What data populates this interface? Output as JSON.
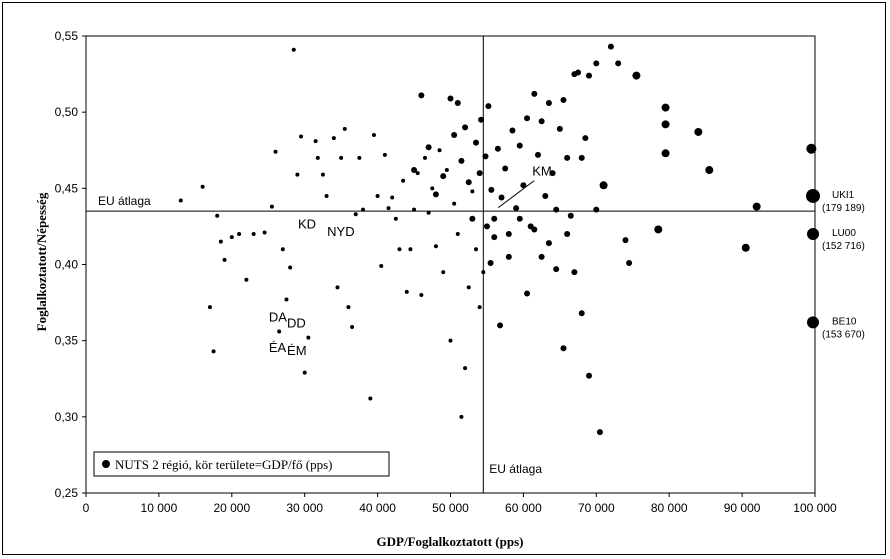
{
  "chart_data": {
    "type": "scatter",
    "xlabel": "GDP/Foglalkoztatott (pps)",
    "ylabel": "Foglalkoztatott/Népesség",
    "xlim": [
      0,
      100000
    ],
    "ylim": [
      0.25,
      0.55
    ],
    "x_ticks": [
      0,
      10000,
      20000,
      30000,
      40000,
      50000,
      60000,
      70000,
      80000,
      90000,
      100000
    ],
    "x_tick_labels": [
      "0",
      "10 000",
      "20 000",
      "30 000",
      "40 000",
      "50 000",
      "60 000",
      "70 000",
      "80 000",
      "90 000",
      "100 000"
    ],
    "y_ticks": [
      0.25,
      0.3,
      0.35,
      0.4,
      0.45,
      0.5,
      0.55
    ],
    "y_tick_labels": [
      "0,25",
      "0,30",
      "0,35",
      "0,40",
      "0,45",
      "0,50",
      "0,55"
    ],
    "grid": false,
    "legend": {
      "position": "bottom-left",
      "label": "NUTS 2 régió, kör területe=GDP/fő (pps)"
    },
    "reference_lines": {
      "eu_avg_x": 54500,
      "eu_avg_y": 0.435,
      "label_horizontal": "EU átlaga",
      "label_vertical": "EU átlaga"
    },
    "annotations": [
      {
        "text": "KD",
        "x": 31000,
        "y": 0.427
      },
      {
        "text": "NYD",
        "x": 35000,
        "y": 0.422
      },
      {
        "text": "DA",
        "x": 27000,
        "y": 0.366
      },
      {
        "text": "DD",
        "x": 29500,
        "y": 0.362
      },
      {
        "text": "ÉA",
        "x": 27000,
        "y": 0.346
      },
      {
        "text": "ÉM",
        "x": 29500,
        "y": 0.344
      },
      {
        "text": "KM",
        "x": 56000,
        "y": 0.436,
        "label": "KM"
      }
    ],
    "side_labels": [
      {
        "name": "UKI1",
        "value": "(179 189)",
        "y": 0.445
      },
      {
        "name": "LU00",
        "value": "(152 716)",
        "y": 0.42
      },
      {
        "name": "BE10",
        "value": "(153 670)",
        "y": 0.362
      }
    ],
    "points": [
      [
        13000,
        0.442,
        2
      ],
      [
        16000,
        0.451,
        2
      ],
      [
        17000,
        0.372,
        2
      ],
      [
        17500,
        0.343,
        2
      ],
      [
        18000,
        0.432,
        2
      ],
      [
        18500,
        0.415,
        2
      ],
      [
        19000,
        0.403,
        2
      ],
      [
        20000,
        0.418,
        2
      ],
      [
        21000,
        0.42,
        2
      ],
      [
        22000,
        0.39,
        2
      ],
      [
        23000,
        0.42,
        2
      ],
      [
        24500,
        0.421,
        2
      ],
      [
        25500,
        0.438,
        2
      ],
      [
        26000,
        0.474,
        2
      ],
      [
        26500,
        0.356,
        2
      ],
      [
        27000,
        0.41,
        2
      ],
      [
        27500,
        0.377,
        2
      ],
      [
        28000,
        0.398,
        2
      ],
      [
        28500,
        0.541,
        2
      ],
      [
        29000,
        0.459,
        2
      ],
      [
        29500,
        0.484,
        2
      ],
      [
        30000,
        0.329,
        2
      ],
      [
        30500,
        0.352,
        2
      ],
      [
        31500,
        0.481,
        2
      ],
      [
        31800,
        0.47,
        2
      ],
      [
        32500,
        0.459,
        2
      ],
      [
        33000,
        0.445,
        2
      ],
      [
        34000,
        0.483,
        2
      ],
      [
        34500,
        0.385,
        2
      ],
      [
        35000,
        0.47,
        2
      ],
      [
        35500,
        0.489,
        2
      ],
      [
        36000,
        0.372,
        2
      ],
      [
        36500,
        0.359,
        2
      ],
      [
        37000,
        0.433,
        2
      ],
      [
        37500,
        0.47,
        2
      ],
      [
        38000,
        0.436,
        2
      ],
      [
        39000,
        0.312,
        2
      ],
      [
        39500,
        0.485,
        2
      ],
      [
        40000,
        0.445,
        2
      ],
      [
        40500,
        0.399,
        2
      ],
      [
        41000,
        0.472,
        2
      ],
      [
        41500,
        0.437,
        2
      ],
      [
        42000,
        0.444,
        2
      ],
      [
        42500,
        0.43,
        2
      ],
      [
        43000,
        0.41,
        2
      ],
      [
        43500,
        0.455,
        2
      ],
      [
        44000,
        0.382,
        2
      ],
      [
        44500,
        0.41,
        2
      ],
      [
        45000,
        0.436,
        2
      ],
      [
        45500,
        0.46,
        2
      ],
      [
        46000,
        0.38,
        2
      ],
      [
        46500,
        0.47,
        2
      ],
      [
        47000,
        0.434,
        2
      ],
      [
        47500,
        0.45,
        2
      ],
      [
        48000,
        0.412,
        2
      ],
      [
        48500,
        0.475,
        2
      ],
      [
        49000,
        0.395,
        2
      ],
      [
        49500,
        0.462,
        2
      ],
      [
        50000,
        0.35,
        2
      ],
      [
        50500,
        0.44,
        2
      ],
      [
        51000,
        0.42,
        2
      ],
      [
        51500,
        0.3,
        2
      ],
      [
        52000,
        0.332,
        2
      ],
      [
        52500,
        0.385,
        2
      ],
      [
        53000,
        0.448,
        2
      ],
      [
        53500,
        0.41,
        2
      ],
      [
        54000,
        0.372,
        2
      ],
      [
        54500,
        0.395,
        2
      ],
      [
        45000,
        0.462,
        3
      ],
      [
        46000,
        0.511,
        3
      ],
      [
        47000,
        0.477,
        3
      ],
      [
        48000,
        0.446,
        3
      ],
      [
        49000,
        0.458,
        3
      ],
      [
        50000,
        0.509,
        3
      ],
      [
        50500,
        0.485,
        3
      ],
      [
        51000,
        0.506,
        3
      ],
      [
        51500,
        0.468,
        3
      ],
      [
        52000,
        0.49,
        3
      ],
      [
        52500,
        0.454,
        3
      ],
      [
        53000,
        0.43,
        3
      ],
      [
        53500,
        0.48,
        3
      ],
      [
        54000,
        0.46,
        3
      ],
      [
        54200,
        0.495,
        3
      ],
      [
        54800,
        0.471,
        3
      ],
      [
        55000,
        0.425,
        3
      ],
      [
        55200,
        0.504,
        3
      ],
      [
        55600,
        0.449,
        3
      ],
      [
        56000,
        0.43,
        3
      ],
      [
        56500,
        0.476,
        3
      ],
      [
        57000,
        0.444,
        3
      ],
      [
        57500,
        0.463,
        3
      ],
      [
        58000,
        0.42,
        3
      ],
      [
        58500,
        0.488,
        3
      ],
      [
        59000,
        0.437,
        3
      ],
      [
        59500,
        0.478,
        3
      ],
      [
        60000,
        0.452,
        3
      ],
      [
        60500,
        0.496,
        3
      ],
      [
        61000,
        0.425,
        3
      ],
      [
        61500,
        0.512,
        3
      ],
      [
        62000,
        0.472,
        3
      ],
      [
        62500,
        0.494,
        3
      ],
      [
        63000,
        0.445,
        3
      ],
      [
        63500,
        0.506,
        3
      ],
      [
        64000,
        0.46,
        3
      ],
      [
        64500,
        0.436,
        3
      ],
      [
        65000,
        0.489,
        3
      ],
      [
        65500,
        0.508,
        3
      ],
      [
        66000,
        0.47,
        3
      ],
      [
        66500,
        0.432,
        3
      ],
      [
        67000,
        0.525,
        3
      ],
      [
        67500,
        0.526,
        3
      ],
      [
        68000,
        0.47,
        3
      ],
      [
        68500,
        0.483,
        3
      ],
      [
        69000,
        0.524,
        3
      ],
      [
        70000,
        0.532,
        3
      ],
      [
        72000,
        0.543,
        3
      ],
      [
        73000,
        0.532,
        3
      ],
      [
        55500,
        0.401,
        3
      ],
      [
        56000,
        0.418,
        3
      ],
      [
        56800,
        0.36,
        3
      ],
      [
        58000,
        0.405,
        3
      ],
      [
        59500,
        0.43,
        3
      ],
      [
        60500,
        0.381,
        3
      ],
      [
        61500,
        0.423,
        3
      ],
      [
        62500,
        0.405,
        3
      ],
      [
        63500,
        0.414,
        3
      ],
      [
        64500,
        0.397,
        3
      ],
      [
        65500,
        0.345,
        3
      ],
      [
        66000,
        0.42,
        3
      ],
      [
        67000,
        0.395,
        3
      ],
      [
        68000,
        0.368,
        3
      ],
      [
        69000,
        0.327,
        3
      ],
      [
        70500,
        0.29,
        3
      ],
      [
        70000,
        0.436,
        3
      ],
      [
        71000,
        0.452,
        4
      ],
      [
        74000,
        0.416,
        3
      ],
      [
        74500,
        0.401,
        3
      ],
      [
        75500,
        0.524,
        4
      ],
      [
        78500,
        0.423,
        4
      ],
      [
        79500,
        0.503,
        4
      ],
      [
        79500,
        0.492,
        4
      ],
      [
        79500,
        0.473,
        4
      ],
      [
        84000,
        0.487,
        4
      ],
      [
        85500,
        0.462,
        4
      ],
      [
        90500,
        0.411,
        4
      ],
      [
        92000,
        0.438,
        4
      ],
      [
        99500,
        0.476,
        5
      ],
      [
        100000,
        0.445,
        7
      ],
      [
        100000,
        0.42,
        6
      ],
      [
        100000,
        0.362,
        6
      ]
    ]
  }
}
